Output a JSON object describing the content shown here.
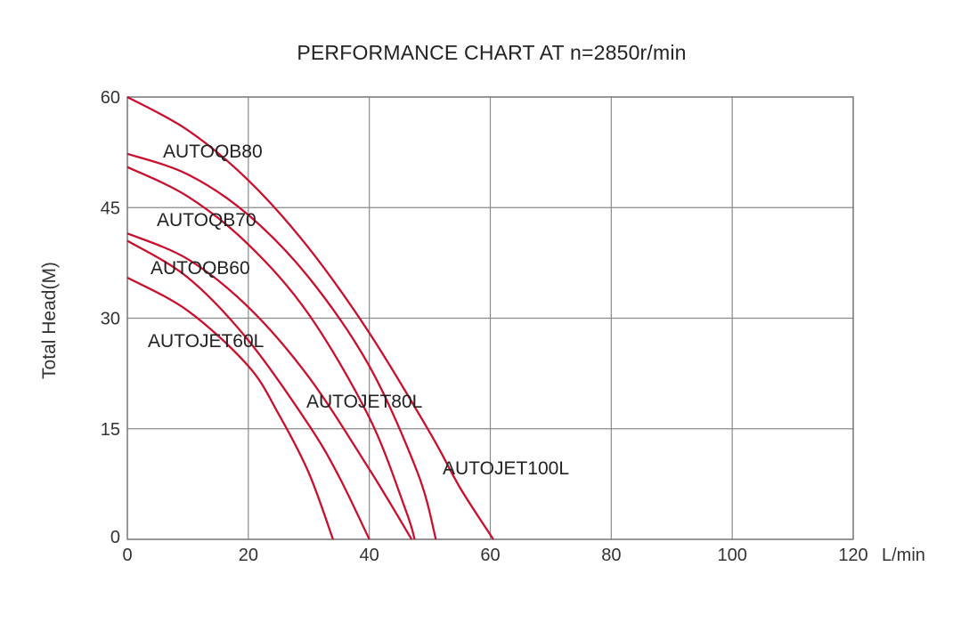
{
  "chart_data": {
    "type": "line",
    "title": "PERFORMANCE CHART AT n=2850r/min",
    "xlabel": "L/min",
    "ylabel": "Total Head(M)",
    "xlim": [
      0,
      120
    ],
    "ylim": [
      0,
      60
    ],
    "xticks": [
      "0",
      "20",
      "40",
      "60",
      "80",
      "100",
      "120"
    ],
    "yticks": [
      "0",
      "15",
      "30",
      "45",
      "60"
    ],
    "grid": true,
    "line_color": "#c8102e",
    "series": [
      {
        "name": "AUTOQB80",
        "x": [
          0,
          10,
          20,
          30,
          40,
          50,
          55,
          60.5
        ],
        "y": [
          60,
          55.5,
          48.7,
          39.5,
          28,
          14.5,
          7,
          0
        ]
      },
      {
        "name": "AUTOQB70",
        "x": [
          0,
          10,
          20,
          30,
          40,
          48,
          51
        ],
        "y": [
          52.3,
          49.5,
          44,
          35.5,
          23.5,
          9,
          0
        ]
      },
      {
        "name": "AUTOQB60",
        "x": [
          0,
          10,
          20,
          30,
          40,
          46,
          47.5
        ],
        "y": [
          50.5,
          46.5,
          40,
          30.5,
          16.5,
          4,
          0
        ]
      },
      {
        "name": "AUTOJET60L",
        "x": [
          0,
          10,
          20,
          25,
          30,
          34
        ],
        "y": [
          35.5,
          31,
          23.5,
          17,
          9,
          0
        ]
      },
      {
        "name": "AUTOJET80L",
        "x": [
          0,
          10,
          20,
          30,
          35,
          40
        ],
        "y": [
          40.5,
          35.5,
          27,
          15.5,
          8.5,
          0
        ]
      },
      {
        "name": "AUTOJET100L",
        "x": [
          0,
          10,
          20,
          30,
          40,
          47
        ],
        "y": [
          41.5,
          38,
          31.5,
          22,
          9.5,
          0
        ]
      }
    ]
  }
}
